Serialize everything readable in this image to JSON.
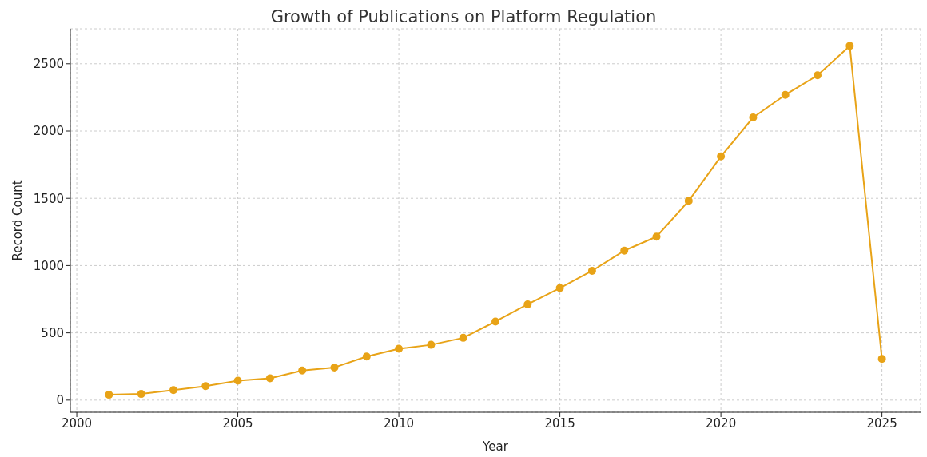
{
  "chart_data": {
    "type": "line",
    "title": "Growth of Publications on Platform Regulation",
    "xlabel": "Year",
    "ylabel": "Record Count",
    "x": [
      2001,
      2002,
      2003,
      2004,
      2005,
      2006,
      2007,
      2008,
      2009,
      2010,
      2011,
      2012,
      2013,
      2014,
      2015,
      2016,
      2017,
      2018,
      2019,
      2020,
      2021,
      2022,
      2023,
      2024,
      2025
    ],
    "series": [
      {
        "color": "#e8a317",
        "values": [
          40,
          46,
          75,
          104,
          145,
          162,
          220,
          243,
          324,
          382,
          411,
          463,
          584,
          712,
          833,
          961,
          1111,
          1215,
          1481,
          1811,
          2101,
          2269,
          2414,
          2633,
          307
        ]
      }
    ],
    "xlim": [
      1999.8,
      2026.2
    ],
    "xticks": [
      2000,
      2005,
      2010,
      2015,
      2020,
      2025
    ],
    "ylim": [
      -90,
      2760
    ],
    "yticks": [
      0,
      500,
      1000,
      1500,
      2000,
      2500
    ],
    "grid": true,
    "marker": "circle",
    "line_style": "solid"
  }
}
